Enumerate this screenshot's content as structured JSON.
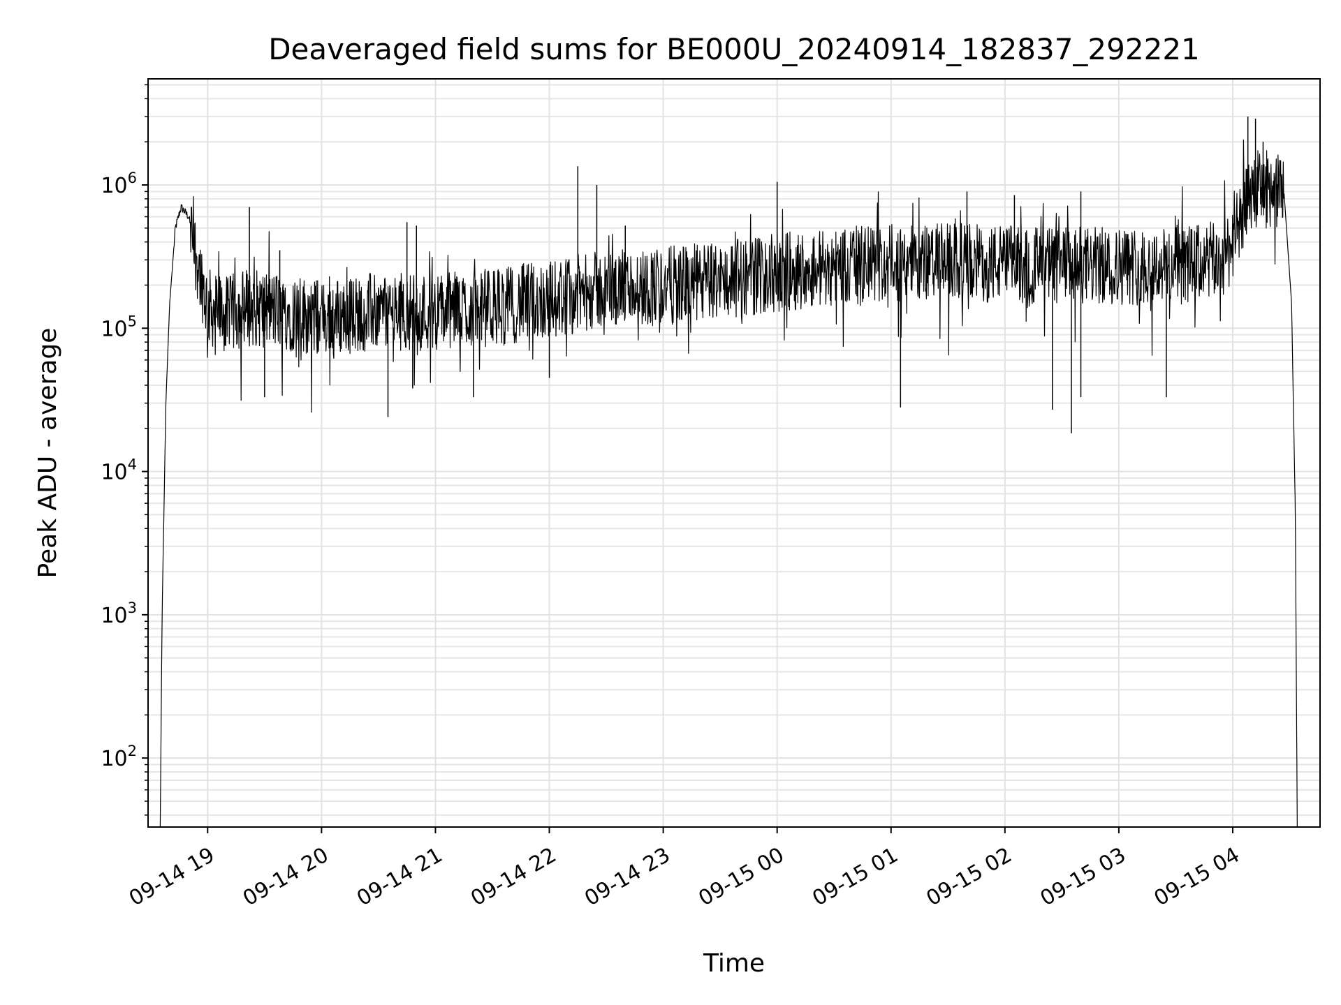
{
  "chart_data": {
    "type": "line",
    "title": "Deaveraged field sums for BE000U_20240914_182837_292221",
    "xlabel": "Time",
    "ylabel": "Peak ADU - average",
    "yscale": "log",
    "ylim": [
      33,
      5500000
    ],
    "xlim": [
      "2024-09-14 18:28:37",
      "2024-09-15 04:46:00"
    ],
    "grid": true,
    "x_ticks": [
      {
        "t": "2024-09-14 19:00",
        "label": "09-14 19"
      },
      {
        "t": "2024-09-14 20:00",
        "label": "09-14 20"
      },
      {
        "t": "2024-09-14 21:00",
        "label": "09-14 21"
      },
      {
        "t": "2024-09-14 22:00",
        "label": "09-14 22"
      },
      {
        "t": "2024-09-14 23:00",
        "label": "09-14 23"
      },
      {
        "t": "2024-09-15 00:00",
        "label": "09-15 00"
      },
      {
        "t": "2024-09-15 01:00",
        "label": "09-15 01"
      },
      {
        "t": "2024-09-15 02:00",
        "label": "09-15 02"
      },
      {
        "t": "2024-09-15 03:00",
        "label": "09-15 03"
      },
      {
        "t": "2024-09-15 04:00",
        "label": "09-15 04"
      }
    ],
    "y_ticks": [
      {
        "v": 100,
        "base": "10",
        "exp": "2"
      },
      {
        "v": 1000,
        "base": "10",
        "exp": "3"
      },
      {
        "v": 10000,
        "base": "10",
        "exp": "4"
      },
      {
        "v": 100000,
        "base": "10",
        "exp": "5"
      },
      {
        "v": 1000000,
        "base": "10",
        "exp": "6"
      }
    ],
    "series": [
      {
        "color": "#000000",
        "points": [
          [
            "2024-09-14 18:35",
            30
          ],
          [
            "2024-09-14 18:36",
            1000
          ],
          [
            "2024-09-14 18:38",
            30000
          ],
          [
            "2024-09-14 18:40",
            150000
          ],
          [
            "2024-09-14 18:43",
            500000
          ],
          [
            "2024-09-14 18:46",
            700000
          ],
          [
            "2024-09-14 18:50",
            600000
          ],
          [
            "2024-09-14 18:55",
            300000
          ],
          [
            "2024-09-14 19:00",
            150000
          ],
          [
            "2024-09-14 19:10",
            130000
          ],
          [
            "2024-09-14 19:20",
            150000
          ],
          [
            "2024-09-14 19:40",
            140000
          ],
          [
            "2024-09-14 20:00",
            125000
          ],
          [
            "2024-09-14 20:30",
            140000
          ],
          [
            "2024-09-14 21:00",
            140000
          ],
          [
            "2024-09-14 21:30",
            150000
          ],
          [
            "2024-09-14 22:00",
            170000
          ],
          [
            "2024-09-14 22:30",
            200000
          ],
          [
            "2024-09-14 23:00",
            210000
          ],
          [
            "2024-09-14 23:30",
            230000
          ],
          [
            "2024-09-15 00:00",
            260000
          ],
          [
            "2024-09-15 00:30",
            290000
          ],
          [
            "2024-09-15 01:00",
            300000
          ],
          [
            "2024-09-15 01:30",
            310000
          ],
          [
            "2024-09-15 02:00",
            300000
          ],
          [
            "2024-09-15 02:30",
            290000
          ],
          [
            "2024-09-15 03:00",
            290000
          ],
          [
            "2024-09-15 03:30",
            290000
          ],
          [
            "2024-09-15 03:55",
            320000
          ],
          [
            "2024-09-15 04:05",
            600000
          ],
          [
            "2024-09-15 04:10",
            1000000
          ],
          [
            "2024-09-15 04:20",
            1000000
          ],
          [
            "2024-09-15 04:27",
            900000
          ],
          [
            "2024-09-15 04:31",
            150000
          ],
          [
            "2024-09-15 04:33",
            5000
          ],
          [
            "2024-09-15 04:34",
            30
          ]
        ],
        "spikes_high": [
          [
            "2024-09-14 19:22",
            700000
          ],
          [
            "2024-09-14 19:38",
            350000
          ],
          [
            "2024-09-14 20:45",
            550000
          ],
          [
            "2024-09-14 20:50",
            520000
          ],
          [
            "2024-09-14 22:15",
            1350000
          ],
          [
            "2024-09-14 22:25",
            1000000
          ],
          [
            "2024-09-14 22:40",
            520000
          ],
          [
            "2024-09-15 00:00",
            1050000
          ],
          [
            "2024-09-15 01:40",
            900000
          ],
          [
            "2024-09-15 02:05",
            850000
          ],
          [
            "2024-09-15 02:40",
            900000
          ],
          [
            "2024-09-15 04:08",
            3000000
          ],
          [
            "2024-09-15 04:12",
            2900000
          ],
          [
            "2024-09-15 04:16",
            2000000
          ]
        ],
        "spikes_low": [
          [
            "2024-09-14 19:30",
            33000
          ],
          [
            "2024-09-14 20:35",
            24000
          ],
          [
            "2024-09-14 20:48",
            38000
          ],
          [
            "2024-09-14 21:20",
            33000
          ],
          [
            "2024-09-14 22:00",
            45000
          ],
          [
            "2024-09-15 01:05",
            28000
          ],
          [
            "2024-09-15 02:25",
            27000
          ],
          [
            "2024-09-15 02:35",
            18500
          ],
          [
            "2024-09-15 02:40",
            33000
          ],
          [
            "2024-09-15 03:25",
            33000
          ]
        ]
      }
    ]
  }
}
